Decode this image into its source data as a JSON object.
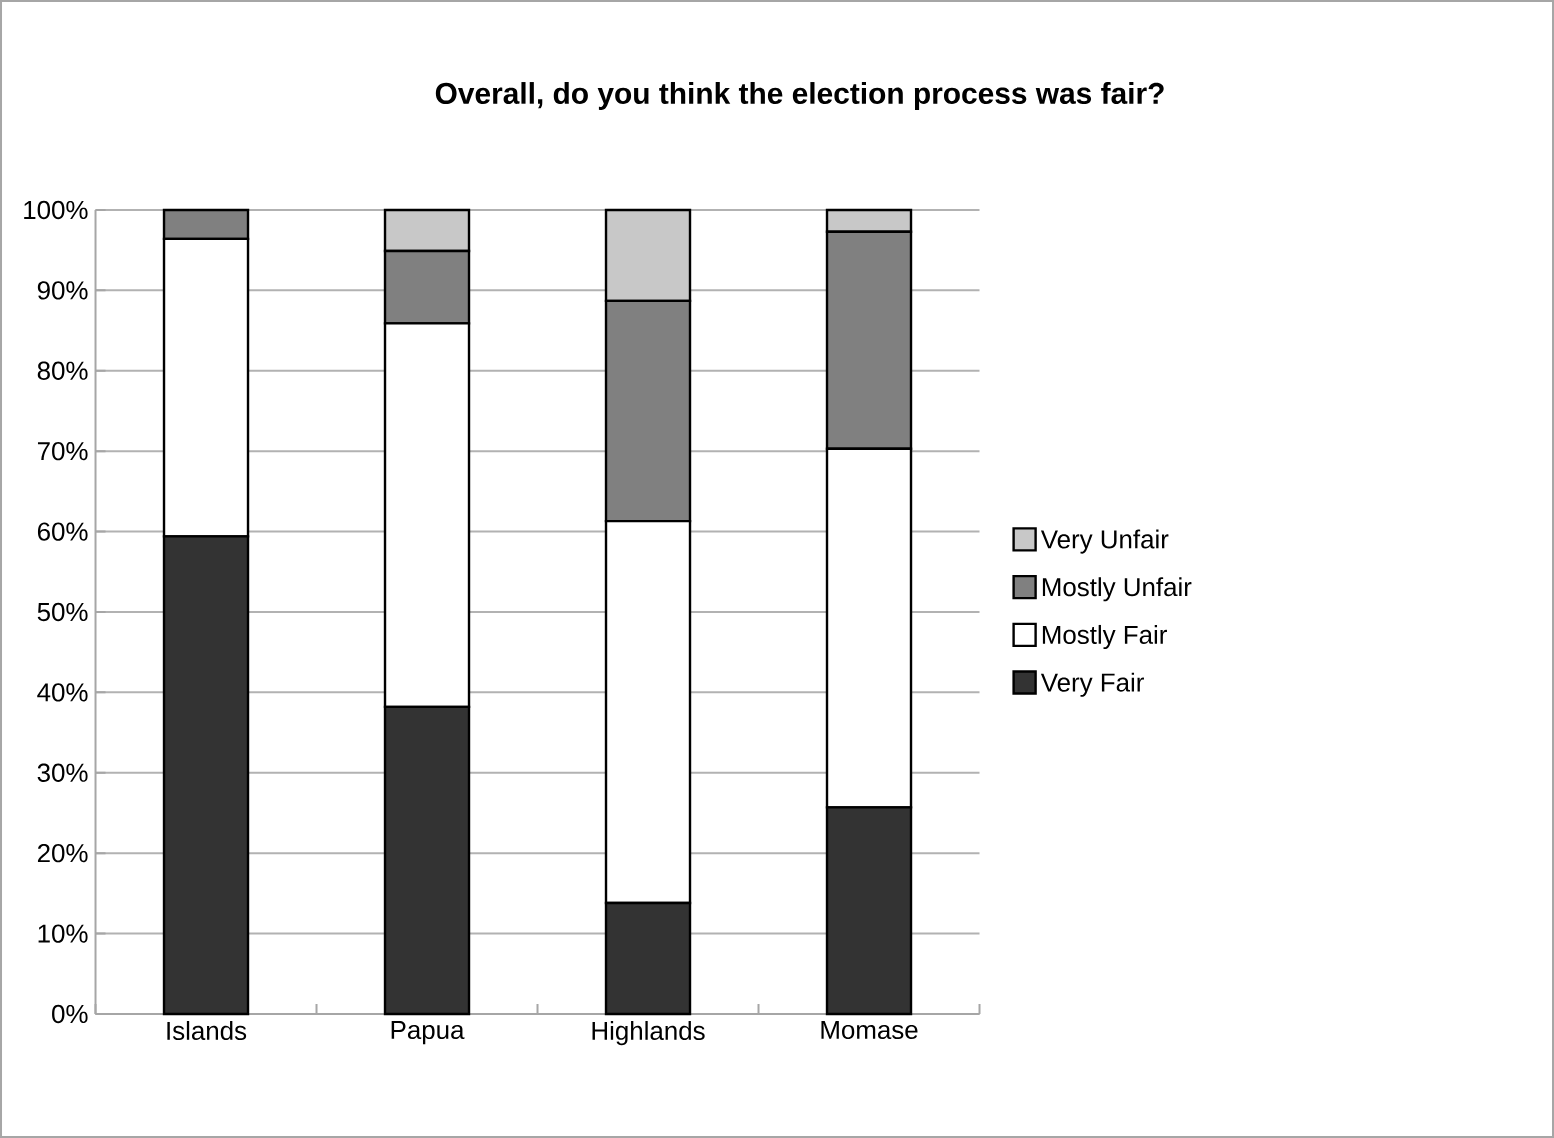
{
  "chart_data": {
    "type": "bar",
    "stacked": true,
    "title": "Overall, do you think the election process was fair?",
    "categories": [
      "Islands",
      "Papua",
      "Highlands",
      "Momase"
    ],
    "series": [
      {
        "name": "Very Fair",
        "color": "#333333",
        "values": [
          59.4,
          38.2,
          13.8,
          25.7
        ]
      },
      {
        "name": "Mostly Fair",
        "color": "#ffffff",
        "values": [
          37.0,
          47.7,
          47.5,
          44.6
        ]
      },
      {
        "name": "Mostly Unfair",
        "color": "#808080",
        "values": [
          3.6,
          9.0,
          27.4,
          27.0
        ]
      },
      {
        "name": "Very Unfair",
        "color": "#c8c8c8",
        "values": [
          0,
          5.1,
          11.3,
          2.7
        ]
      }
    ],
    "ylim": [
      0,
      100
    ],
    "yticks": [
      {
        "value": 0,
        "label": "0%"
      },
      {
        "value": 10,
        "label": "10%"
      },
      {
        "value": 20,
        "label": "20%"
      },
      {
        "value": 30,
        "label": "30%"
      },
      {
        "value": 40,
        "label": "40%"
      },
      {
        "value": 50,
        "label": "50%"
      },
      {
        "value": 60,
        "label": "60%"
      },
      {
        "value": 70,
        "label": "70%"
      },
      {
        "value": 80,
        "label": "80%"
      },
      {
        "value": 90,
        "label": "90%"
      },
      {
        "value": 100,
        "label": "100%"
      }
    ],
    "grid": "y",
    "legend": "right"
  }
}
